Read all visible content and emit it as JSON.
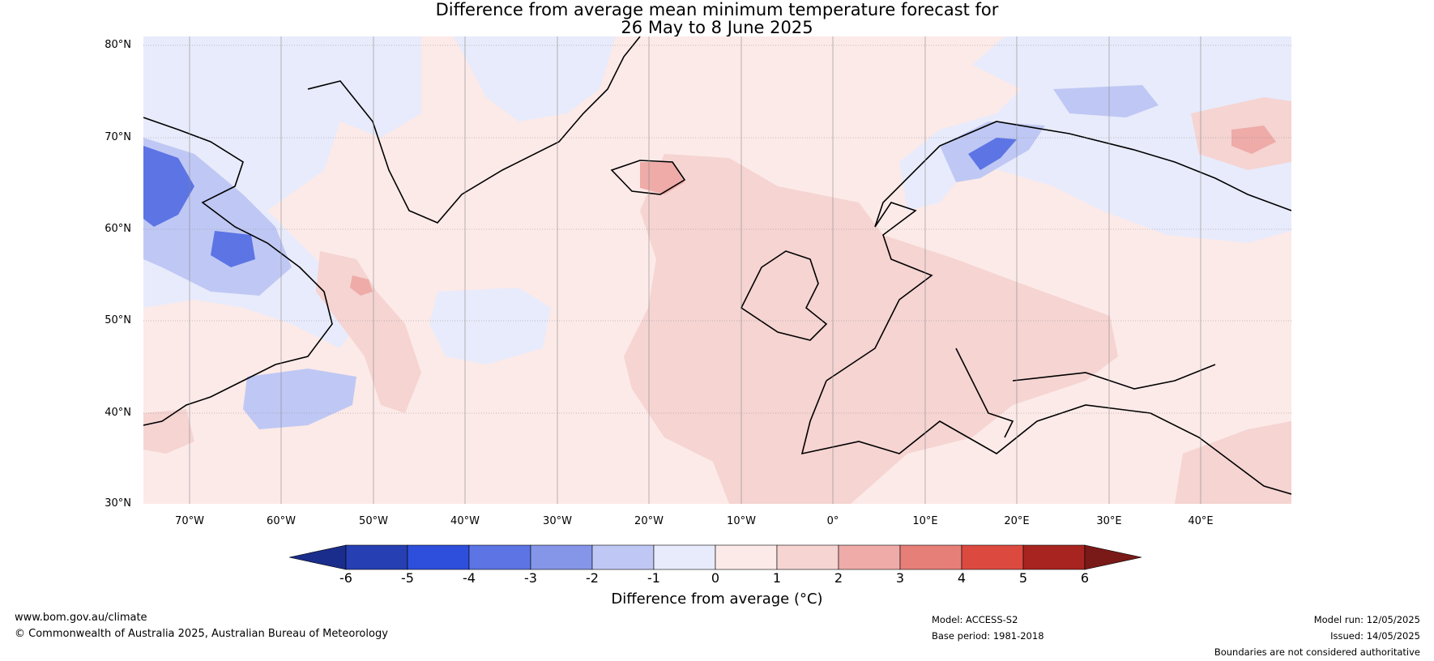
{
  "title_line1": "Difference from average mean minimum temperature forecast for",
  "title_line2": "26 May to 8 June 2025",
  "lat_labels": [
    "80°N",
    "70°N",
    "60°N",
    "50°N",
    "40°N",
    "30°N"
  ],
  "lon_labels": [
    "70°W",
    "60°W",
    "50°W",
    "40°W",
    "30°W",
    "20°W",
    "10°W",
    "0°",
    "10°E",
    "20°E",
    "30°E",
    "40°E"
  ],
  "colorbar": {
    "ticks": [
      "-6",
      "-5",
      "-4",
      "-3",
      "-2",
      "-1",
      "0",
      "1",
      "2",
      "3",
      "4",
      "5",
      "6"
    ],
    "colors": [
      "#263fb3",
      "#2e4fdc",
      "#5c74e4",
      "#8596e9",
      "#bfc8f4",
      "#e8ebfb",
      "#fceae8",
      "#f5d4d2",
      "#eeaba8",
      "#e67f78",
      "#dc4a3f",
      "#a82420"
    ],
    "under_color": "#1a2d8c",
    "over_color": "#7a1a18",
    "label": "Difference from average (°C)"
  },
  "footer": {
    "website": "www.bom.gov.au/climate",
    "copyright": "© Commonwealth of Australia 2025, Australian Bureau of Meteorology",
    "model": "Model: ACCESS-S2",
    "base_period": "Base period: 1981-2018",
    "model_run": "Model run: 12/05/2025",
    "issued": "Issued: 14/05/2025",
    "disclaimer": "Boundaries are not considered authoritative"
  }
}
